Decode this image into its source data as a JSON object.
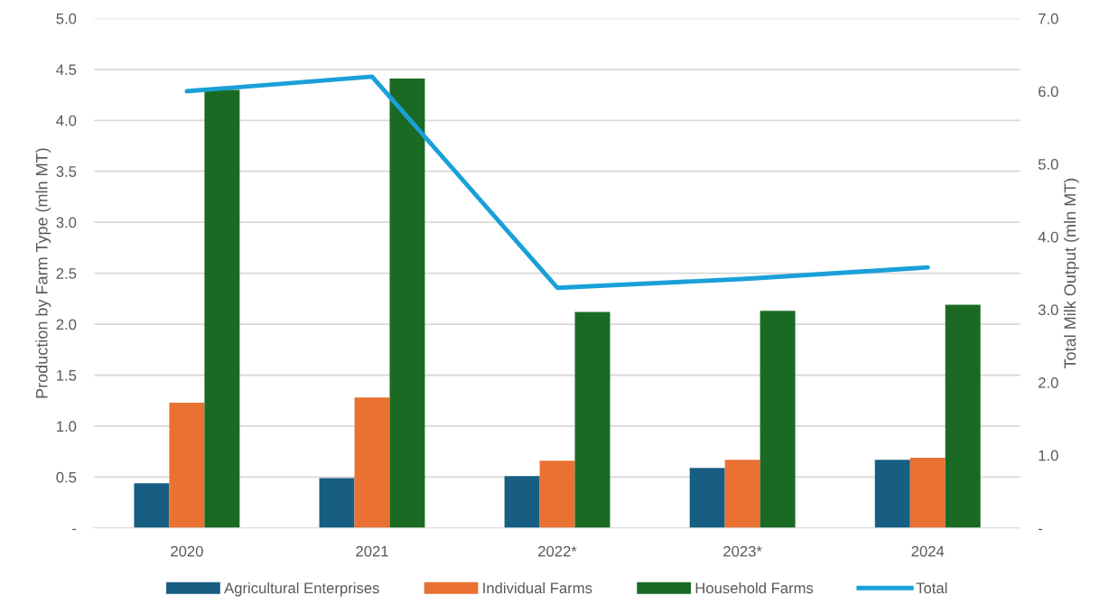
{
  "chart_data": {
    "type": "bar",
    "categories": [
      "2020",
      "2021",
      "2022*",
      "2023*",
      "2024"
    ],
    "ylabel": "Production by Farm Type (mln MT)",
    "y2label": "Total Milk Output (mln MT)",
    "series": [
      {
        "name": "Agricultural Enterprises",
        "color": "#175e82",
        "values": [
          0.44,
          0.49,
          0.51,
          0.59,
          0.67
        ]
      },
      {
        "name": "Individual Farms",
        "color": "#e97132",
        "values": [
          1.23,
          1.28,
          0.66,
          0.67,
          0.69
        ]
      },
      {
        "name": "Household Farms",
        "color": "#1b6a24",
        "values": [
          4.3,
          4.41,
          2.12,
          2.13,
          2.19
        ]
      },
      {
        "name": "Total",
        "type": "line",
        "axis": "y2",
        "color": "#1aa0d8",
        "values": [
          6.0,
          6.2,
          3.3,
          3.42,
          3.58
        ]
      }
    ],
    "ylim": [
      0,
      5
    ],
    "yticks": [
      {
        "value": 0,
        "label": "-"
      },
      0.5,
      {
        "value": 1,
        "label": "1.0"
      },
      1.5,
      {
        "value": 2,
        "label": "2.0"
      },
      2.5,
      {
        "value": 3,
        "label": "3.0"
      },
      3.5,
      {
        "value": 4,
        "label": "4.0"
      },
      4.5,
      {
        "value": 5,
        "label": "5.0"
      }
    ],
    "y2lim": [
      0,
      7
    ],
    "y2ticks": [
      {
        "value": 0,
        "label": "-"
      },
      {
        "value": 1,
        "label": "1.0"
      },
      {
        "value": 2,
        "label": "2.0"
      },
      {
        "value": 3,
        "label": "3.0"
      },
      {
        "value": 4,
        "label": "4.0"
      },
      {
        "value": 5,
        "label": "5.0"
      },
      {
        "value": 6,
        "label": "6.0"
      },
      {
        "value": 7,
        "label": "7.0"
      }
    ],
    "grid": "y",
    "legend": "bottom"
  }
}
